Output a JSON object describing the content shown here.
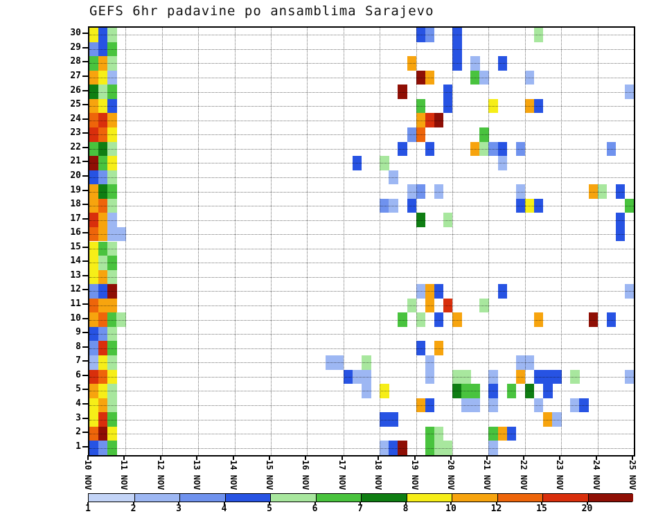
{
  "title": "GEFS 6hr padavine po ansamblima Sarajevo",
  "chart_data": {
    "type": "heatmap",
    "description": "GEFS ensemble 6-hour precipitation per member, station Sarajevo",
    "n_rows": 30,
    "n_cols": 60,
    "steps_per_day": 4,
    "x_tick_labels": [
      "10 NOV",
      "11 NOV",
      "12 NOV",
      "13 NOV",
      "14 NOV",
      "15 NOV",
      "16 NOV",
      "17 NOV",
      "18 NOV",
      "19 NOV",
      "20 NOV",
      "21 NOV",
      "22 NOV",
      "23 NOV",
      "24 NOV",
      "25 NOV"
    ],
    "y_tick_labels": [
      1,
      2,
      3,
      4,
      5,
      6,
      7,
      8,
      9,
      10,
      11,
      12,
      13,
      14,
      15,
      16,
      17,
      18,
      19,
      20,
      21,
      22,
      23,
      24,
      25,
      26,
      27,
      28,
      29,
      30
    ],
    "legend": {
      "values": [
        "1",
        "2",
        "3",
        "4",
        "5",
        "6",
        "7",
        "8",
        "10",
        "12",
        "15",
        "20"
      ],
      "colors": [
        "#c3d4f7",
        "#9db7f3",
        "#6f92ee",
        "#2753e3",
        "#a8e79e",
        "#49c33e",
        "#0f7e13",
        "#f6ee18",
        "#f7a40e",
        "#ee650a",
        "#d92f0c",
        "#8f0f05"
      ]
    },
    "cells": [
      [
        1,
        0,
        3
      ],
      [
        1,
        1,
        2
      ],
      [
        1,
        2,
        5
      ],
      [
        2,
        0,
        9
      ],
      [
        2,
        1,
        11
      ],
      [
        2,
        2,
        7
      ],
      [
        3,
        0,
        7
      ],
      [
        3,
        1,
        10
      ],
      [
        3,
        2,
        5
      ],
      [
        4,
        0,
        7
      ],
      [
        4,
        1,
        8
      ],
      [
        4,
        2,
        4
      ],
      [
        5,
        0,
        8
      ],
      [
        5,
        1,
        7
      ],
      [
        5,
        2,
        4
      ],
      [
        6,
        0,
        10
      ],
      [
        6,
        1,
        9
      ],
      [
        6,
        2,
        7
      ],
      [
        7,
        0,
        1
      ],
      [
        7,
        1,
        7
      ],
      [
        7,
        2,
        4
      ],
      [
        8,
        0,
        2
      ],
      [
        8,
        1,
        10
      ],
      [
        8,
        2,
        5
      ],
      [
        9,
        0,
        3
      ],
      [
        9,
        1,
        2
      ],
      [
        9,
        2,
        4
      ],
      [
        10,
        0,
        8
      ],
      [
        10,
        1,
        9
      ],
      [
        10,
        2,
        5
      ],
      [
        10,
        3,
        4
      ],
      [
        11,
        0,
        9
      ],
      [
        11,
        1,
        8
      ],
      [
        11,
        2,
        8
      ],
      [
        12,
        0,
        2
      ],
      [
        12,
        1,
        3
      ],
      [
        12,
        2,
        11
      ],
      [
        13,
        0,
        7
      ],
      [
        13,
        1,
        8
      ],
      [
        13,
        2,
        4
      ],
      [
        14,
        0,
        7
      ],
      [
        14,
        1,
        4
      ],
      [
        14,
        2,
        5
      ],
      [
        15,
        0,
        7
      ],
      [
        15,
        1,
        5
      ],
      [
        15,
        2,
        4
      ],
      [
        16,
        0,
        9
      ],
      [
        16,
        1,
        8
      ],
      [
        16,
        2,
        1
      ],
      [
        16,
        3,
        1
      ],
      [
        17,
        0,
        10
      ],
      [
        17,
        1,
        8
      ],
      [
        17,
        2,
        1
      ],
      [
        18,
        0,
        8
      ],
      [
        18,
        1,
        9
      ],
      [
        18,
        2,
        4
      ],
      [
        19,
        0,
        8
      ],
      [
        19,
        1,
        6
      ],
      [
        19,
        2,
        5
      ],
      [
        20,
        0,
        3
      ],
      [
        20,
        1,
        2
      ],
      [
        20,
        2,
        4
      ],
      [
        21,
        0,
        11
      ],
      [
        21,
        1,
        5
      ],
      [
        21,
        2,
        7
      ],
      [
        22,
        0,
        5
      ],
      [
        22,
        1,
        6
      ],
      [
        22,
        2,
        4
      ],
      [
        23,
        0,
        10
      ],
      [
        23,
        1,
        9
      ],
      [
        23,
        2,
        7
      ],
      [
        24,
        0,
        9
      ],
      [
        24,
        1,
        10
      ],
      [
        24,
        2,
        8
      ],
      [
        25,
        0,
        8
      ],
      [
        25,
        1,
        7
      ],
      [
        25,
        2,
        3
      ],
      [
        26,
        0,
        6
      ],
      [
        26,
        1,
        4
      ],
      [
        26,
        2,
        5
      ],
      [
        27,
        0,
        8
      ],
      [
        27,
        1,
        7
      ],
      [
        27,
        2,
        1
      ],
      [
        28,
        0,
        5
      ],
      [
        28,
        1,
        8
      ],
      [
        28,
        2,
        4
      ],
      [
        29,
        0,
        2
      ],
      [
        29,
        1,
        3
      ],
      [
        29,
        2,
        5
      ],
      [
        30,
        0,
        7
      ],
      [
        30,
        1,
        3
      ],
      [
        30,
        2,
        4
      ],
      [
        30,
        36,
        3
      ],
      [
        30,
        37,
        2
      ],
      [
        30,
        40,
        3
      ],
      [
        30,
        49,
        4
      ],
      [
        29,
        40,
        3
      ],
      [
        28,
        35,
        8
      ],
      [
        28,
        40,
        3
      ],
      [
        28,
        42,
        1
      ],
      [
        28,
        45,
        3
      ],
      [
        27,
        36,
        11
      ],
      [
        27,
        37,
        8
      ],
      [
        27,
        42,
        5
      ],
      [
        27,
        43,
        1
      ],
      [
        27,
        48,
        1
      ],
      [
        26,
        34,
        11
      ],
      [
        26,
        39,
        3
      ],
      [
        26,
        59,
        1
      ],
      [
        25,
        36,
        5
      ],
      [
        25,
        39,
        3
      ],
      [
        25,
        44,
        7
      ],
      [
        25,
        48,
        8
      ],
      [
        25,
        49,
        3
      ],
      [
        24,
        36,
        8
      ],
      [
        24,
        37,
        10
      ],
      [
        24,
        38,
        11
      ],
      [
        23,
        35,
        2
      ],
      [
        23,
        36,
        9
      ],
      [
        23,
        43,
        5
      ],
      [
        22,
        34,
        3
      ],
      [
        22,
        37,
        3
      ],
      [
        22,
        42,
        8
      ],
      [
        22,
        43,
        4
      ],
      [
        22,
        44,
        2
      ],
      [
        22,
        45,
        3
      ],
      [
        22,
        47,
        2
      ],
      [
        22,
        57,
        2
      ],
      [
        21,
        29,
        3
      ],
      [
        21,
        32,
        4
      ],
      [
        21,
        45,
        1
      ],
      [
        20,
        33,
        1
      ],
      [
        19,
        35,
        1
      ],
      [
        19,
        36,
        2
      ],
      [
        19,
        38,
        1
      ],
      [
        19,
        47,
        1
      ],
      [
        19,
        55,
        8
      ],
      [
        19,
        56,
        4
      ],
      [
        19,
        58,
        3
      ],
      [
        18,
        32,
        2
      ],
      [
        18,
        33,
        1
      ],
      [
        18,
        35,
        3
      ],
      [
        18,
        47,
        3
      ],
      [
        18,
        48,
        7
      ],
      [
        18,
        49,
        3
      ],
      [
        18,
        59,
        5
      ],
      [
        17,
        36,
        6
      ],
      [
        17,
        39,
        4
      ],
      [
        17,
        58,
        3
      ],
      [
        16,
        58,
        3
      ],
      [
        12,
        36,
        1
      ],
      [
        12,
        37,
        8
      ],
      [
        12,
        38,
        3
      ],
      [
        12,
        45,
        3
      ],
      [
        12,
        59,
        1
      ],
      [
        11,
        35,
        4
      ],
      [
        11,
        37,
        8
      ],
      [
        11,
        39,
        10
      ],
      [
        11,
        43,
        4
      ],
      [
        10,
        34,
        5
      ],
      [
        10,
        36,
        4
      ],
      [
        10,
        38,
        3
      ],
      [
        10,
        40,
        8
      ],
      [
        10,
        49,
        8
      ],
      [
        10,
        55,
        11
      ],
      [
        10,
        57,
        3
      ],
      [
        8,
        36,
        3
      ],
      [
        8,
        38,
        8
      ],
      [
        7,
        26,
        1
      ],
      [
        7,
        27,
        1
      ],
      [
        7,
        30,
        4
      ],
      [
        7,
        37,
        1
      ],
      [
        7,
        47,
        1
      ],
      [
        7,
        48,
        1
      ],
      [
        6,
        28,
        3
      ],
      [
        6,
        29,
        1
      ],
      [
        6,
        30,
        1
      ],
      [
        6,
        37,
        1
      ],
      [
        6,
        40,
        4
      ],
      [
        6,
        41,
        4
      ],
      [
        6,
        44,
        1
      ],
      [
        6,
        47,
        8
      ],
      [
        6,
        49,
        3
      ],
      [
        6,
        50,
        3
      ],
      [
        6,
        51,
        3
      ],
      [
        6,
        53,
        4
      ],
      [
        6,
        59,
        1
      ],
      [
        5,
        30,
        1
      ],
      [
        5,
        32,
        7
      ],
      [
        5,
        40,
        6
      ],
      [
        5,
        41,
        5
      ],
      [
        5,
        42,
        5
      ],
      [
        5,
        44,
        3
      ],
      [
        5,
        46,
        5
      ],
      [
        5,
        48,
        6
      ],
      [
        5,
        50,
        3
      ],
      [
        4,
        36,
        8
      ],
      [
        4,
        37,
        3
      ],
      [
        4,
        41,
        1
      ],
      [
        4,
        42,
        1
      ],
      [
        4,
        44,
        1
      ],
      [
        4,
        49,
        1
      ],
      [
        4,
        53,
        1
      ],
      [
        4,
        54,
        3
      ],
      [
        3,
        32,
        3
      ],
      [
        3,
        33,
        3
      ],
      [
        3,
        50,
        8
      ],
      [
        3,
        51,
        1
      ],
      [
        2,
        37,
        5
      ],
      [
        2,
        38,
        4
      ],
      [
        2,
        44,
        5
      ],
      [
        2,
        45,
        8
      ],
      [
        2,
        46,
        3
      ],
      [
        1,
        32,
        1
      ],
      [
        1,
        33,
        3
      ],
      [
        1,
        34,
        11
      ],
      [
        1,
        37,
        5
      ],
      [
        1,
        38,
        4
      ],
      [
        1,
        39,
        4
      ],
      [
        1,
        44,
        1
      ]
    ]
  }
}
